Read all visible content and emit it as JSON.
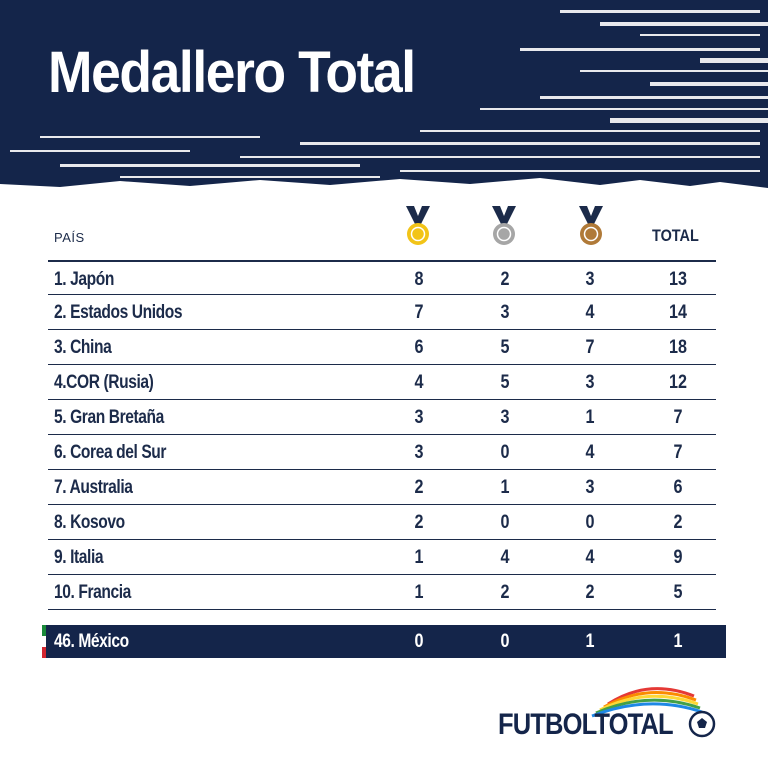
{
  "title": "Medallero Total",
  "header": {
    "pais_label": "PAÍS",
    "total_label": "TOTAL",
    "medal_colors": {
      "gold": "#f2c418",
      "silver": "#a6a6a6",
      "bronze": "#b07a38"
    }
  },
  "rows": [
    {
      "name": "1. Japón",
      "gold": "8",
      "silver": "2",
      "bronze": "3",
      "total": "13"
    },
    {
      "name": "2. Estados Unidos",
      "gold": "7",
      "silver": "3",
      "bronze": "4",
      "total": "14"
    },
    {
      "name": "3. China",
      "gold": "6",
      "silver": "5",
      "bronze": "7",
      "total": "18"
    },
    {
      "name": "4.COR (Rusia)",
      "gold": "4",
      "silver": "5",
      "bronze": "3",
      "total": "12"
    },
    {
      "name": "5. Gran Bretaña",
      "gold": "3",
      "silver": "3",
      "bronze": "1",
      "total": "7"
    },
    {
      "name": "6. Corea del Sur",
      "gold": "3",
      "silver": "0",
      "bronze": "4",
      "total": "7"
    },
    {
      "name": "7. Australia",
      "gold": "2",
      "silver": "1",
      "bronze": "3",
      "total": "6"
    },
    {
      "name": "8. Kosovo",
      "gold": "2",
      "silver": "0",
      "bronze": "0",
      "total": "2"
    },
    {
      "name": "9. Italia",
      "gold": "1",
      "silver": "4",
      "bronze": "4",
      "total": "9"
    },
    {
      "name": "10. Francia",
      "gold": "1",
      "silver": "2",
      "bronze": "2",
      "total": "5"
    }
  ],
  "highlight": {
    "name": "46. México",
    "gold": "0",
    "silver": "0",
    "bronze": "1",
    "total": "1"
  },
  "logo": {
    "text": "FUTBOLTOTAL"
  },
  "colors": {
    "navy": "#14254a",
    "text": "#1c2b4a"
  }
}
